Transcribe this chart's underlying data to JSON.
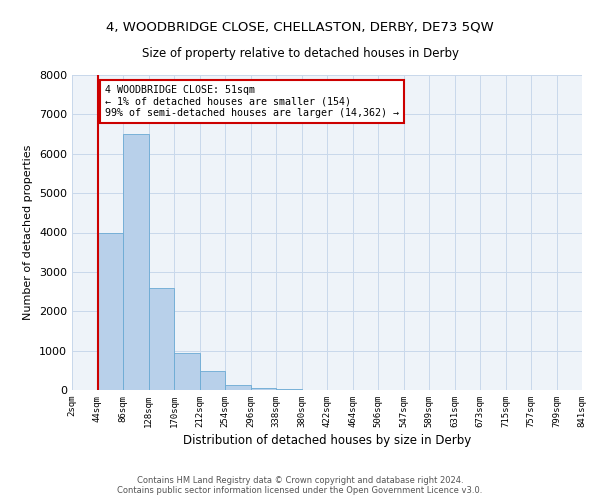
{
  "title": "4, WOODBRIDGE CLOSE, CHELLASTON, DERBY, DE73 5QW",
  "subtitle": "Size of property relative to detached houses in Derby",
  "xlabel": "Distribution of detached houses by size in Derby",
  "ylabel": "Number of detached properties",
  "footer_line1": "Contains HM Land Registry data © Crown copyright and database right 2024.",
  "footer_line2": "Contains public sector information licensed under the Open Government Licence v3.0.",
  "bin_labels": [
    "2sqm",
    "44sqm",
    "86sqm",
    "128sqm",
    "170sqm",
    "212sqm",
    "254sqm",
    "296sqm",
    "338sqm",
    "380sqm",
    "422sqm",
    "464sqm",
    "506sqm",
    "547sqm",
    "589sqm",
    "631sqm",
    "673sqm",
    "715sqm",
    "757sqm",
    "799sqm",
    "841sqm"
  ],
  "bar_values": [
    0,
    4000,
    6500,
    2600,
    950,
    480,
    130,
    60,
    20,
    0,
    0,
    0,
    0,
    0,
    0,
    0,
    0,
    0,
    0,
    0
  ],
  "bar_color": "#b8d0ea",
  "bar_edge_color": "#6aaad4",
  "grid_color": "#c8d8eb",
  "background_color": "#eef3f9",
  "annotation_box_color": "#cc0000",
  "property_line_color": "#cc0000",
  "annotation_text_line1": "4 WOODBRIDGE CLOSE: 51sqm",
  "annotation_text_line2": "← 1% of detached houses are smaller (154)",
  "annotation_text_line3": "99% of semi-detached houses are larger (14,362) →",
  "ylim": [
    0,
    8000
  ],
  "yticks": [
    0,
    1000,
    2000,
    3000,
    4000,
    5000,
    6000,
    7000,
    8000
  ],
  "title_fontsize": 9,
  "subtitle_fontsize": 8.5
}
